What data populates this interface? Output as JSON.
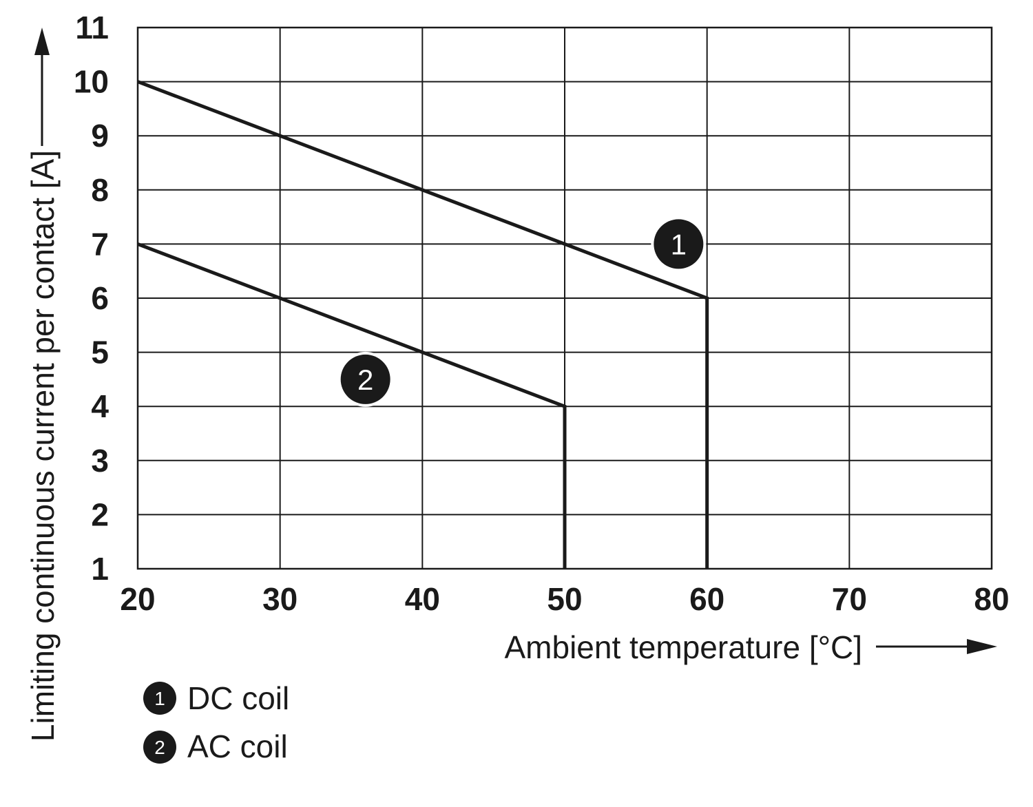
{
  "chart_data": {
    "type": "line",
    "xlabel": "Ambient temperature [°C]",
    "ylabel": "Limiting continuous current per contact [A]",
    "xlim": [
      20,
      80
    ],
    "ylim": [
      1,
      11
    ],
    "xticks": [
      20,
      30,
      40,
      50,
      60,
      70,
      80
    ],
    "yticks": [
      1,
      2,
      3,
      4,
      5,
      6,
      7,
      8,
      9,
      10,
      11
    ],
    "grid": true,
    "line_color": "#1a1a1a",
    "series": [
      {
        "name": "DC coil",
        "marker": "1",
        "marker_position": {
          "x": 58,
          "y": 7
        },
        "points": [
          {
            "x": 20,
            "y": 10
          },
          {
            "x": 60,
            "y": 6
          },
          {
            "x": 60,
            "y": 1
          }
        ]
      },
      {
        "name": "AC coil",
        "marker": "2",
        "marker_position": {
          "x": 36,
          "y": 4.5
        },
        "points": [
          {
            "x": 20,
            "y": 7
          },
          {
            "x": 50,
            "y": 4
          },
          {
            "x": 50,
            "y": 1
          }
        ]
      }
    ],
    "legend": [
      {
        "marker": "1",
        "label": "DC coil"
      },
      {
        "marker": "2",
        "label": "AC coil"
      }
    ]
  }
}
